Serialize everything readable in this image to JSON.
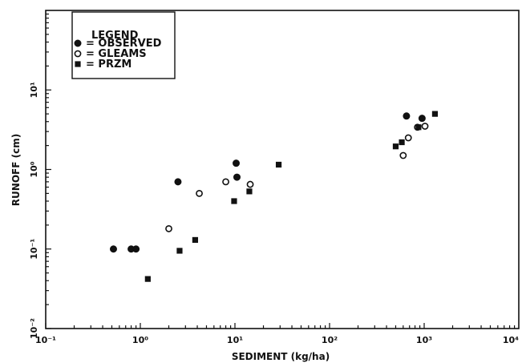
{
  "chart_data": {
    "type": "scatter",
    "title": "",
    "xlabel": "SEDIMENT (kg/ha)",
    "ylabel": "RUNOFF (cm)",
    "x_scale": "log",
    "y_scale": "log",
    "xlim": [
      0.1,
      10000
    ],
    "ylim": [
      0.01,
      100
    ],
    "x_ticks": [
      {
        "value": 0.1,
        "label": "10⁻¹"
      },
      {
        "value": 1,
        "label": "10⁰"
      },
      {
        "value": 10,
        "label": "10¹"
      },
      {
        "value": 100,
        "label": "10²"
      },
      {
        "value": 1000,
        "label": "10³"
      },
      {
        "value": 10000,
        "label": "10⁴"
      }
    ],
    "y_ticks": [
      {
        "value": 0.01,
        "label": "10⁻²"
      },
      {
        "value": 0.1,
        "label": "10⁻¹"
      },
      {
        "value": 1,
        "label": "10⁰"
      },
      {
        "value": 10,
        "label": "10¹"
      }
    ],
    "grid": false,
    "legend": {
      "title": "LEGEND",
      "position": "top-left",
      "entries": [
        {
          "marker": "filled-circle",
          "text": "= OBSERVED"
        },
        {
          "marker": "open-circle",
          "text": "= GLEAMS"
        },
        {
          "marker": "filled-square",
          "text": "= PRZM"
        }
      ]
    },
    "series": [
      {
        "name": "OBSERVED",
        "marker": "filled-circle",
        "points": [
          {
            "x": 0.52,
            "y": 0.1
          },
          {
            "x": 0.8,
            "y": 0.1
          },
          {
            "x": 0.9,
            "y": 0.1
          },
          {
            "x": 2.5,
            "y": 0.7
          },
          {
            "x": 10.3,
            "y": 1.2
          },
          {
            "x": 10.5,
            "y": 0.8
          },
          {
            "x": 650,
            "y": 4.7
          },
          {
            "x": 950,
            "y": 4.4
          }
        ]
      },
      {
        "name": "GLEAMS",
        "marker": "open-circle",
        "points": [
          {
            "x": 2.0,
            "y": 0.18
          },
          {
            "x": 4.2,
            "y": 0.5
          },
          {
            "x": 8.0,
            "y": 0.7
          },
          {
            "x": 14.5,
            "y": 0.65
          },
          {
            "x": 600,
            "y": 1.5
          },
          {
            "x": 680,
            "y": 2.5
          },
          {
            "x": 850,
            "y": 3.4
          },
          {
            "x": 1020,
            "y": 3.5
          }
        ]
      },
      {
        "name": "PRZM",
        "marker": "filled-square",
        "points": [
          {
            "x": 1.2,
            "y": 0.042
          },
          {
            "x": 2.6,
            "y": 0.095
          },
          {
            "x": 3.8,
            "y": 0.13
          },
          {
            "x": 9.8,
            "y": 0.4
          },
          {
            "x": 14.2,
            "y": 0.53
          },
          {
            "x": 29,
            "y": 1.15
          },
          {
            "x": 500,
            "y": 1.95
          },
          {
            "x": 580,
            "y": 2.2
          },
          {
            "x": 870,
            "y": 3.4
          },
          {
            "x": 1300,
            "y": 5.0
          }
        ]
      }
    ],
    "colors": {
      "ink": "#111111",
      "background": "#ffffff"
    }
  }
}
